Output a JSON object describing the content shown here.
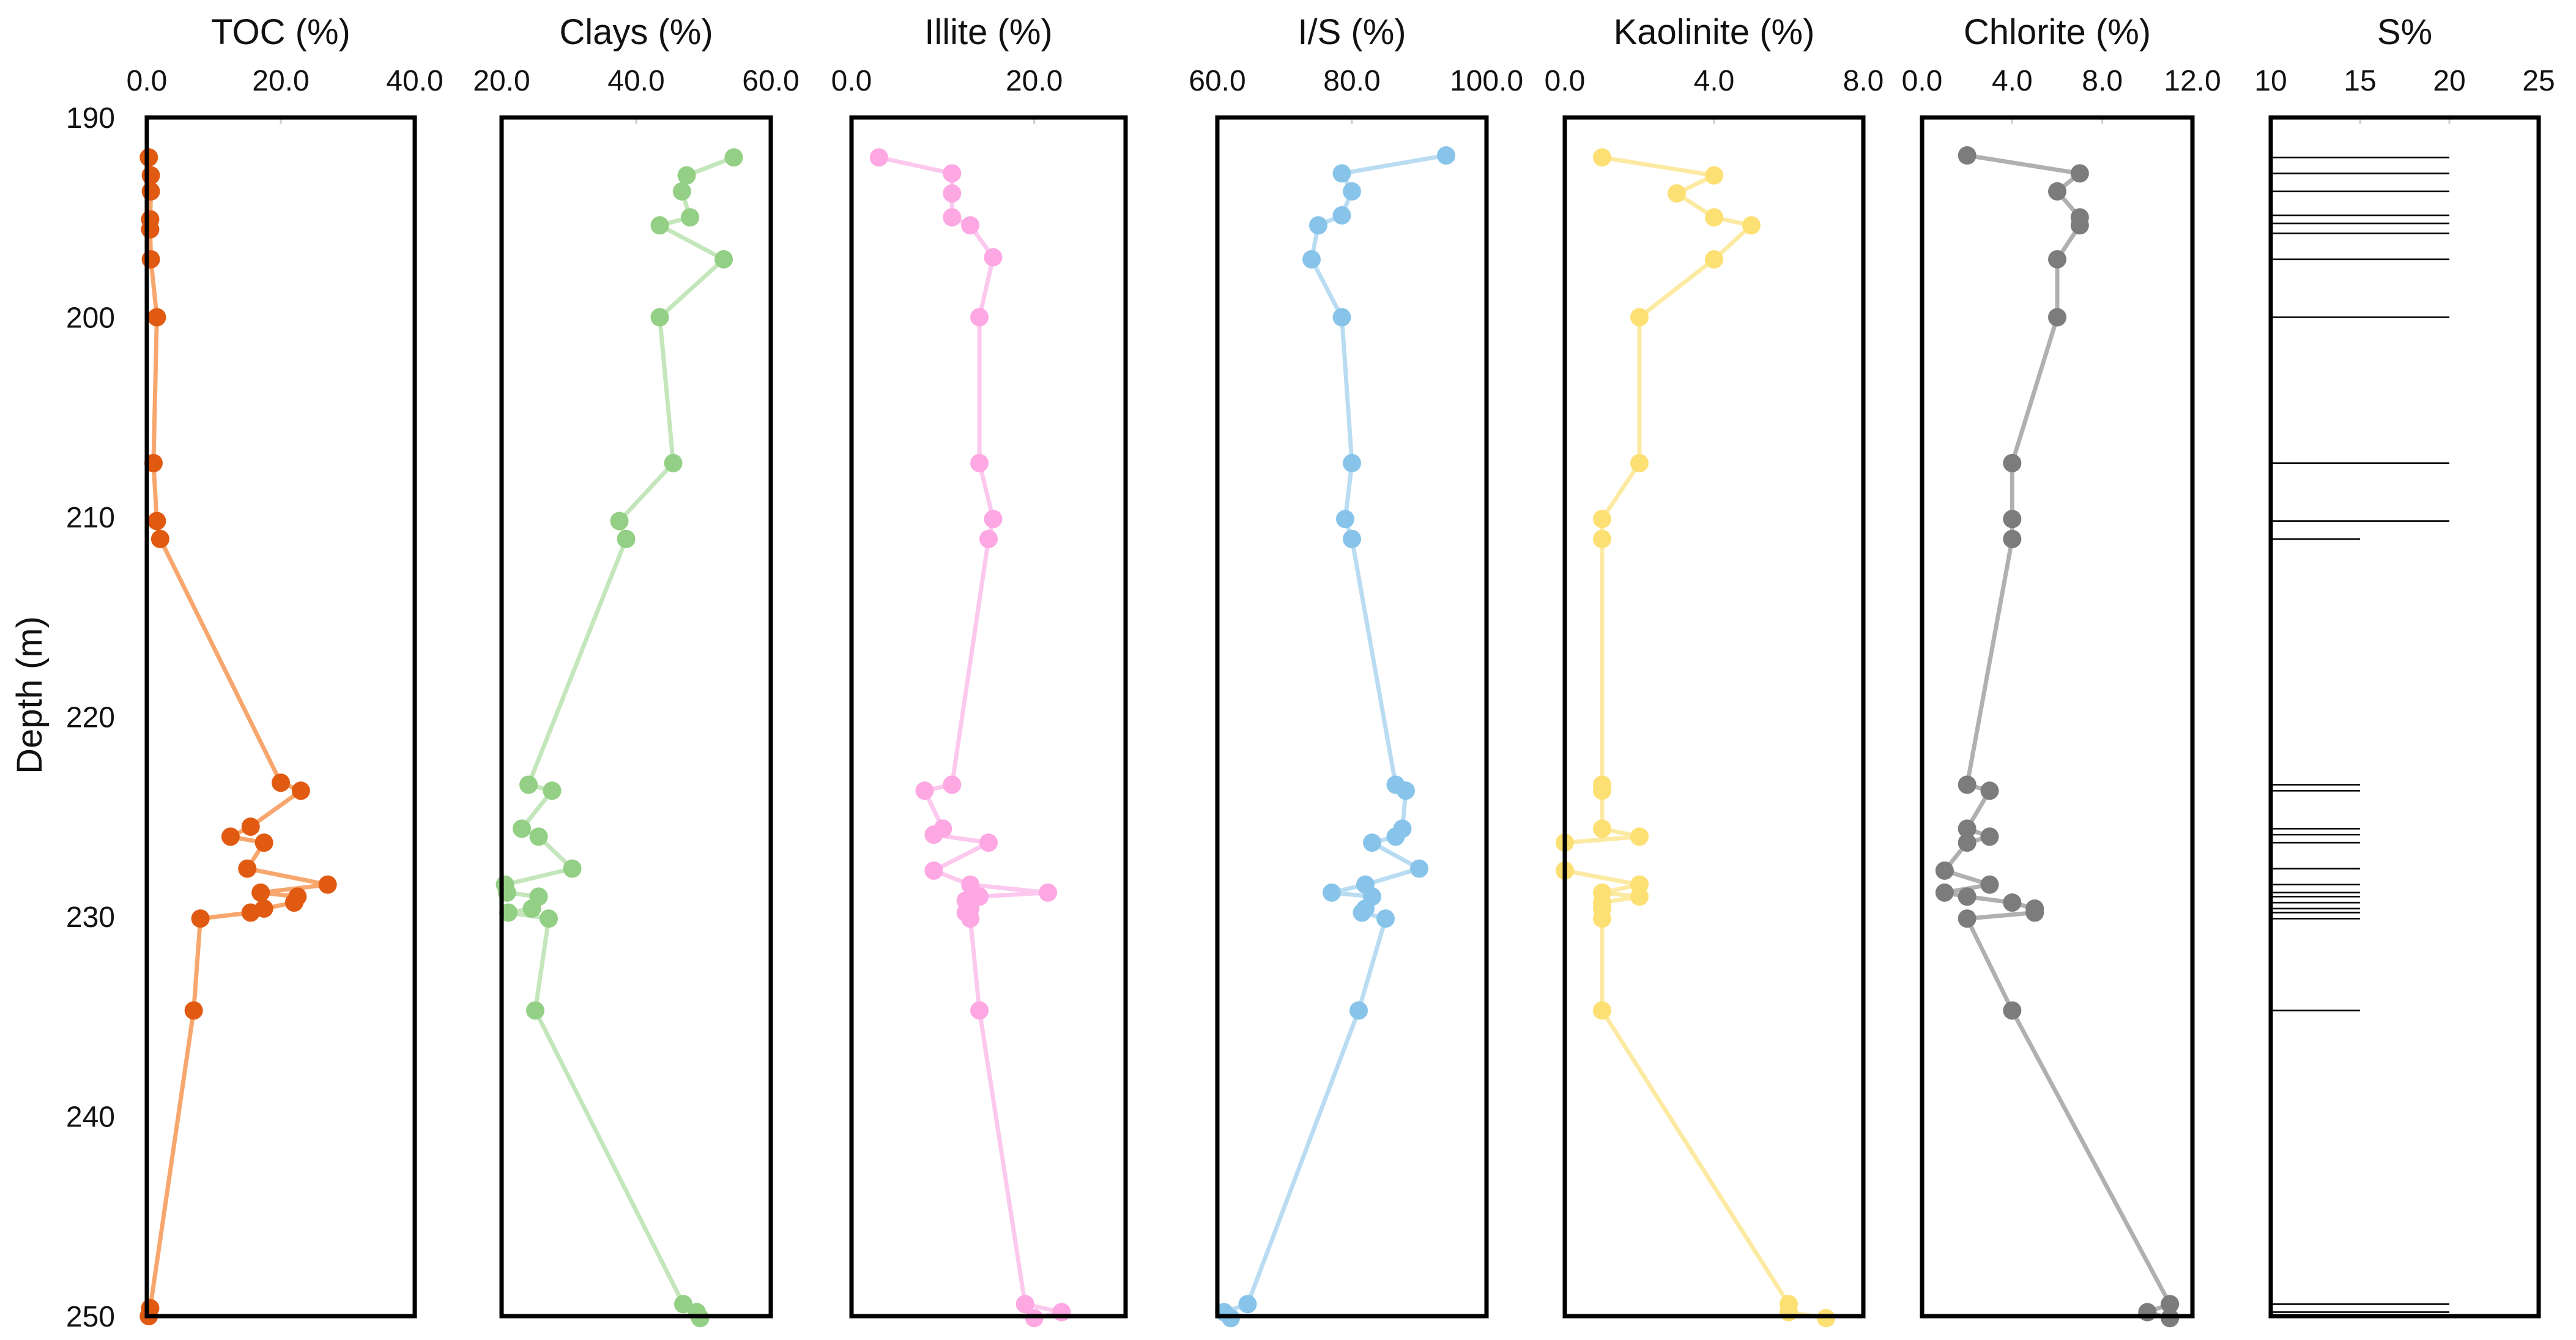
{
  "chart_data": {
    "type": "line",
    "shared_y_axis": {
      "label": "Depth (m)",
      "range": [
        190,
        250
      ],
      "reversed": true,
      "ticks": [
        "190",
        "200",
        "210",
        "220",
        "230",
        "240",
        "250"
      ]
    },
    "grid": false,
    "panels": [
      {
        "id": "toc",
        "title": "TOC (%)",
        "xlim": [
          0,
          40
        ],
        "xticks": [
          "0.0",
          "20.0",
          "40.0"
        ],
        "colors": {
          "marker": "#E05A12",
          "line": "#F7A76E"
        },
        "points": [
          {
            "x": 0.3,
            "depth": 192.0
          },
          {
            "x": 0.6,
            "depth": 192.9
          },
          {
            "x": 0.6,
            "depth": 193.7
          },
          {
            "x": 0.5,
            "depth": 195.1
          },
          {
            "x": 0.5,
            "depth": 195.6
          },
          {
            "x": 0.6,
            "depth": 197.1
          },
          {
            "x": 1.5,
            "depth": 200.0
          },
          {
            "x": 1.0,
            "depth": 207.3
          },
          {
            "x": 1.5,
            "depth": 210.2
          },
          {
            "x": 2.0,
            "depth": 211.1
          },
          {
            "x": 20.0,
            "depth": 223.3
          },
          {
            "x": 23.0,
            "depth": 223.7
          },
          {
            "x": 15.5,
            "depth": 225.5
          },
          {
            "x": 12.5,
            "depth": 226.0
          },
          {
            "x": 17.5,
            "depth": 226.3
          },
          {
            "x": 15.0,
            "depth": 227.6
          },
          {
            "x": 27.0,
            "depth": 228.4
          },
          {
            "x": 17.0,
            "depth": 228.8
          },
          {
            "x": 22.5,
            "depth": 229.0
          },
          {
            "x": 22.0,
            "depth": 229.3
          },
          {
            "x": 17.5,
            "depth": 229.6
          },
          {
            "x": 15.5,
            "depth": 229.8
          },
          {
            "x": 8.0,
            "depth": 230.1
          },
          {
            "x": 7.0,
            "depth": 234.7
          },
          {
            "x": 0.5,
            "depth": 249.6
          },
          {
            "x": 0.3,
            "depth": 250.0
          }
        ]
      },
      {
        "id": "clays",
        "title": "Clays (%)",
        "xlim": [
          20,
          60
        ],
        "xticks": [
          "20.0",
          "40.0",
          "60.0"
        ],
        "colors": {
          "marker": "#93CF84",
          "line": "#C4E6BB"
        },
        "points": [
          {
            "x": 54.5,
            "depth": 192.0
          },
          {
            "x": 47.5,
            "depth": 192.9
          },
          {
            "x": 46.8,
            "depth": 193.7
          },
          {
            "x": 48.0,
            "depth": 195.0
          },
          {
            "x": 43.5,
            "depth": 195.4
          },
          {
            "x": 53.0,
            "depth": 197.1
          },
          {
            "x": 43.5,
            "depth": 200.0
          },
          {
            "x": 45.5,
            "depth": 207.3
          },
          {
            "x": 37.5,
            "depth": 210.2
          },
          {
            "x": 38.5,
            "depth": 211.1
          },
          {
            "x": 24.0,
            "depth": 223.4
          },
          {
            "x": 27.5,
            "depth": 223.7
          },
          {
            "x": 23.0,
            "depth": 225.6
          },
          {
            "x": 25.5,
            "depth": 226.0
          },
          {
            "x": 30.5,
            "depth": 227.6
          },
          {
            "x": 20.5,
            "depth": 228.4
          },
          {
            "x": 20.8,
            "depth": 228.8
          },
          {
            "x": 25.5,
            "depth": 229.0
          },
          {
            "x": 24.5,
            "depth": 229.6
          },
          {
            "x": 21.0,
            "depth": 229.8
          },
          {
            "x": 27.0,
            "depth": 230.1
          },
          {
            "x": 25.0,
            "depth": 234.7
          },
          {
            "x": 47.0,
            "depth": 249.4
          },
          {
            "x": 49.0,
            "depth": 249.8
          },
          {
            "x": 49.5,
            "depth": 250.1
          }
        ]
      },
      {
        "id": "illite",
        "title": "Illite (%)",
        "xlim": [
          0,
          30
        ],
        "xticks": [
          "0.0",
          "20.0"
        ],
        "colors": {
          "marker": "#FDA7E3",
          "line": "#FCC8EE"
        },
        "points": [
          {
            "x": 3.0,
            "depth": 192.0
          },
          {
            "x": 11.0,
            "depth": 192.8
          },
          {
            "x": 11.0,
            "depth": 193.8
          },
          {
            "x": 11.0,
            "depth": 195.0
          },
          {
            "x": 13.0,
            "depth": 195.4
          },
          {
            "x": 15.5,
            "depth": 197.0
          },
          {
            "x": 14.0,
            "depth": 200.0
          },
          {
            "x": 14.0,
            "depth": 207.3
          },
          {
            "x": 15.5,
            "depth": 210.1
          },
          {
            "x": 15.0,
            "depth": 211.1
          },
          {
            "x": 11.0,
            "depth": 223.4
          },
          {
            "x": 8.0,
            "depth": 223.7
          },
          {
            "x": 10.0,
            "depth": 225.6
          },
          {
            "x": 9.0,
            "depth": 225.9
          },
          {
            "x": 15.0,
            "depth": 226.3
          },
          {
            "x": 9.0,
            "depth": 227.7
          },
          {
            "x": 13.0,
            "depth": 228.4
          },
          {
            "x": 21.5,
            "depth": 228.8
          },
          {
            "x": 14.0,
            "depth": 229.0
          },
          {
            "x": 12.5,
            "depth": 229.2
          },
          {
            "x": 13.0,
            "depth": 229.6
          },
          {
            "x": 12.5,
            "depth": 229.8
          },
          {
            "x": 13.0,
            "depth": 230.1
          },
          {
            "x": 14.0,
            "depth": 234.7
          },
          {
            "x": 19.0,
            "depth": 249.4
          },
          {
            "x": 23.0,
            "depth": 249.8
          },
          {
            "x": 20.0,
            "depth": 250.1
          }
        ]
      },
      {
        "id": "is",
        "title": "I/S (%)",
        "xlim": [
          60,
          100
        ],
        "xticks": [
          "60.0",
          "80.0",
          "100.0"
        ],
        "colors": {
          "marker": "#88C4EA",
          "line": "#B9DCF2"
        },
        "points": [
          {
            "x": 94.0,
            "depth": 191.9
          },
          {
            "x": 78.5,
            "depth": 192.8
          },
          {
            "x": 80.0,
            "depth": 193.7
          },
          {
            "x": 78.5,
            "depth": 194.9
          },
          {
            "x": 75.0,
            "depth": 195.4
          },
          {
            "x": 74.0,
            "depth": 197.1
          },
          {
            "x": 78.5,
            "depth": 200.0
          },
          {
            "x": 80.0,
            "depth": 207.3
          },
          {
            "x": 79.0,
            "depth": 210.1
          },
          {
            "x": 80.0,
            "depth": 211.1
          },
          {
            "x": 86.5,
            "depth": 223.4
          },
          {
            "x": 88.0,
            "depth": 223.7
          },
          {
            "x": 87.5,
            "depth": 225.6
          },
          {
            "x": 86.5,
            "depth": 226.0
          },
          {
            "x": 83.0,
            "depth": 226.3
          },
          {
            "x": 90.0,
            "depth": 227.6
          },
          {
            "x": 82.0,
            "depth": 228.4
          },
          {
            "x": 77.0,
            "depth": 228.8
          },
          {
            "x": 83.0,
            "depth": 229.0
          },
          {
            "x": 82.0,
            "depth": 229.6
          },
          {
            "x": 81.5,
            "depth": 229.8
          },
          {
            "x": 85.0,
            "depth": 230.1
          },
          {
            "x": 81.0,
            "depth": 234.7
          },
          {
            "x": 64.5,
            "depth": 249.4
          },
          {
            "x": 61.0,
            "depth": 249.8
          },
          {
            "x": 62.0,
            "depth": 250.1
          }
        ]
      },
      {
        "id": "kaolinite",
        "title": "Kaolinite (%)",
        "xlim": [
          0,
          8
        ],
        "xticks": [
          "0.0",
          "4.0",
          "8.0"
        ],
        "colors": {
          "marker": "#FDE073",
          "line": "#FDEAA2"
        },
        "points": [
          {
            "x": 1.0,
            "depth": 192.0
          },
          {
            "x": 4.0,
            "depth": 192.9
          },
          {
            "x": 3.0,
            "depth": 193.8
          },
          {
            "x": 4.0,
            "depth": 195.0
          },
          {
            "x": 5.0,
            "depth": 195.4
          },
          {
            "x": 4.0,
            "depth": 197.1
          },
          {
            "x": 2.0,
            "depth": 200.0
          },
          {
            "x": 2.0,
            "depth": 207.3
          },
          {
            "x": 1.0,
            "depth": 210.1
          },
          {
            "x": 1.0,
            "depth": 211.1
          },
          {
            "x": 1.0,
            "depth": 223.4
          },
          {
            "x": 1.0,
            "depth": 223.7
          },
          {
            "x": 1.0,
            "depth": 225.6
          },
          {
            "x": 2.0,
            "depth": 226.0
          },
          {
            "x": 0.0,
            "depth": 226.3
          },
          {
            "x": 0.0,
            "depth": 227.7
          },
          {
            "x": 2.0,
            "depth": 228.4
          },
          {
            "x": 1.0,
            "depth": 228.8
          },
          {
            "x": 2.0,
            "depth": 229.0
          },
          {
            "x": 1.0,
            "depth": 229.3
          },
          {
            "x": 1.0,
            "depth": 229.6
          },
          {
            "x": 1.0,
            "depth": 230.1
          },
          {
            "x": 1.0,
            "depth": 234.7
          },
          {
            "x": 6.0,
            "depth": 249.4
          },
          {
            "x": 6.0,
            "depth": 249.8
          },
          {
            "x": 7.0,
            "depth": 250.1
          }
        ]
      },
      {
        "id": "chlorite",
        "title": "Chlorite (%)",
        "xlim": [
          0,
          12
        ],
        "xticks": [
          "0.0",
          "4.0",
          "8.0",
          "12.0"
        ],
        "colors": {
          "marker": "#7C7C7C",
          "line": "#B0B0B0"
        },
        "points": [
          {
            "x": 2.0,
            "depth": 191.9
          },
          {
            "x": 7.0,
            "depth": 192.8
          },
          {
            "x": 6.0,
            "depth": 193.7
          },
          {
            "x": 7.0,
            "depth": 195.0
          },
          {
            "x": 7.0,
            "depth": 195.4
          },
          {
            "x": 6.0,
            "depth": 197.1
          },
          {
            "x": 6.0,
            "depth": 200.0
          },
          {
            "x": 4.0,
            "depth": 207.3
          },
          {
            "x": 4.0,
            "depth": 210.1
          },
          {
            "x": 4.0,
            "depth": 211.1
          },
          {
            "x": 2.0,
            "depth": 223.4
          },
          {
            "x": 3.0,
            "depth": 223.7
          },
          {
            "x": 2.0,
            "depth": 225.6
          },
          {
            "x": 3.0,
            "depth": 226.0
          },
          {
            "x": 2.0,
            "depth": 226.3
          },
          {
            "x": 1.0,
            "depth": 227.7
          },
          {
            "x": 3.0,
            "depth": 228.4
          },
          {
            "x": 1.0,
            "depth": 228.8
          },
          {
            "x": 2.0,
            "depth": 229.0
          },
          {
            "x": 4.0,
            "depth": 229.3
          },
          {
            "x": 5.0,
            "depth": 229.6
          },
          {
            "x": 5.0,
            "depth": 229.8
          },
          {
            "x": 2.0,
            "depth": 230.1
          },
          {
            "x": 4.0,
            "depth": 234.7
          },
          {
            "x": 11.0,
            "depth": 249.4
          },
          {
            "x": 10.0,
            "depth": 249.8
          },
          {
            "x": 11.0,
            "depth": 250.1
          }
        ]
      },
      {
        "id": "sulfur",
        "title": "S%",
        "type": "bar",
        "orientation": "horizontal",
        "xlim": [
          10,
          25
        ],
        "xticks": [
          "10",
          "15",
          "20",
          "25"
        ],
        "colors": {
          "line": "#000000"
        },
        "bars": [
          {
            "depth": 192.0,
            "value": 20
          },
          {
            "depth": 192.8,
            "value": 20
          },
          {
            "depth": 193.7,
            "value": 20
          },
          {
            "depth": 194.9,
            "value": 20
          },
          {
            "depth": 195.3,
            "value": 20
          },
          {
            "depth": 195.8,
            "value": 20
          },
          {
            "depth": 197.1,
            "value": 20
          },
          {
            "depth": 200.0,
            "value": 20
          },
          {
            "depth": 207.3,
            "value": 20
          },
          {
            "depth": 210.2,
            "value": 20
          },
          {
            "depth": 211.1,
            "value": 15
          },
          {
            "depth": 223.4,
            "value": 15
          },
          {
            "depth": 223.7,
            "value": 15
          },
          {
            "depth": 225.6,
            "value": 15
          },
          {
            "depth": 225.9,
            "value": 15
          },
          {
            "depth": 226.3,
            "value": 15
          },
          {
            "depth": 227.6,
            "value": 15
          },
          {
            "depth": 228.4,
            "value": 15
          },
          {
            "depth": 228.8,
            "value": 15
          },
          {
            "depth": 229.0,
            "value": 15
          },
          {
            "depth": 229.3,
            "value": 15
          },
          {
            "depth": 229.6,
            "value": 15
          },
          {
            "depth": 229.8,
            "value": 15
          },
          {
            "depth": 230.1,
            "value": 15
          },
          {
            "depth": 234.7,
            "value": 15
          },
          {
            "depth": 249.4,
            "value": 20
          },
          {
            "depth": 249.8,
            "value": 20
          },
          {
            "depth": 250.0,
            "value": 22
          }
        ]
      }
    ]
  }
}
